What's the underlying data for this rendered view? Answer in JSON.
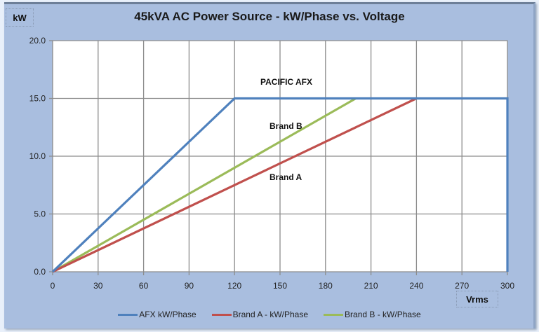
{
  "chart_data": {
    "type": "line",
    "title": "45kVA AC Power Source - kW/Phase vs. Voltage",
    "xlabel": "Vrms",
    "ylabel": "kW",
    "xlim": [
      0,
      300
    ],
    "ylim": [
      0,
      20
    ],
    "x_ticks": [
      "0",
      "30",
      "60",
      "90",
      "120",
      "150",
      "180",
      "210",
      "240",
      "270",
      "300"
    ],
    "y_ticks": [
      "0.0",
      "5.0",
      "10.0",
      "15.0",
      "20.0"
    ],
    "grid": true,
    "legend_position": "bottom",
    "series": [
      {
        "name": "AFX kW/Phase",
        "color": "#4f81bd",
        "points": [
          [
            0,
            0
          ],
          [
            120,
            15
          ],
          [
            300,
            15
          ],
          [
            300,
            0
          ]
        ]
      },
      {
        "name": "Brand A - kW/Phase",
        "color": "#c0504d",
        "points": [
          [
            0,
            0
          ],
          [
            240,
            15
          ]
        ]
      },
      {
        "name": "Brand B - kW/Phase",
        "color": "#9bbb59",
        "points": [
          [
            0,
            0
          ],
          [
            200,
            15
          ]
        ]
      }
    ],
    "annotations": [
      {
        "text": "PACIFIC AFX",
        "x": 165,
        "y": 16.5
      },
      {
        "text": "Brand B",
        "x": 165,
        "y": 12.5
      },
      {
        "text": "Brand A",
        "x": 165,
        "y": 8.1
      }
    ]
  },
  "labels": {
    "title": "45kVA AC Power Source - kW/Phase vs. Voltage",
    "ylabel": "kW",
    "xlabel": "Vrms",
    "legend": [
      "AFX kW/Phase",
      "Brand A - kW/Phase",
      "Brand B - kW/Phase"
    ],
    "annot_afx": "PACIFIC AFX",
    "annot_b": "Brand B",
    "annot_a": "Brand A"
  }
}
